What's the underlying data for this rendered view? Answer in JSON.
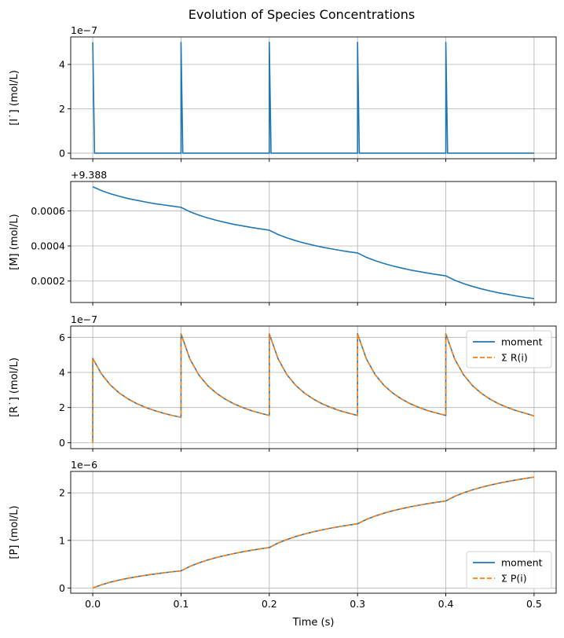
{
  "chart_data": {
    "type": "line",
    "title": "Evolution of Species Concentrations",
    "xlabel": "Time (s)",
    "xlim": [
      -0.025,
      0.525
    ],
    "xticks": [
      0.0,
      0.1,
      0.2,
      0.3,
      0.4,
      0.5
    ],
    "xtick_labels": [
      "0.0",
      "0.1",
      "0.2",
      "0.3",
      "0.4",
      "0.5"
    ],
    "grid": true,
    "colors": {
      "blue": "#1f77b4",
      "orange": "#ff7f0e"
    },
    "panels": [
      {
        "ylabel": "[I˙] (mol/L)",
        "offset_text": "1e−7",
        "scale": 1e-07,
        "ylim": [
          -0.25,
          5.24
        ],
        "yticks": [
          0,
          2,
          4
        ],
        "ytick_labels": [
          "0",
          "2",
          "4"
        ],
        "series": [
          {
            "name": "I",
            "style": "solid",
            "color": "#1f77b4",
            "x": [
              0,
              0.002,
              0.1,
              0.1,
              0.102,
              0.2,
              0.2,
              0.202,
              0.3,
              0.3,
              0.302,
              0.4,
              0.4,
              0.402,
              0.5
            ],
            "y": [
              5,
              0,
              0,
              5,
              0,
              0,
              5,
              0,
              0,
              5,
              0,
              0,
              5,
              0,
              0
            ]
          }
        ]
      },
      {
        "ylabel": "[M] (mol/L)",
        "offset_text": "+9.388",
        "offset": 9.388,
        "ylim": [
          7.8e-05,
          0.000767
        ],
        "yticks": [
          0.0002,
          0.0004,
          0.0006
        ],
        "ytick_labels": [
          "0.0002",
          "0.0004",
          "0.0006"
        ],
        "series": [
          {
            "name": "M",
            "style": "solid",
            "color": "#1f77b4",
            "x": [
              0,
              0.01,
              0.02,
              0.03,
              0.04,
              0.05,
              0.06,
              0.07,
              0.08,
              0.09,
              0.1,
              0.11,
              0.12,
              0.13,
              0.14,
              0.15,
              0.16,
              0.17,
              0.18,
              0.19,
              0.2,
              0.21,
              0.22,
              0.23,
              0.24,
              0.25,
              0.26,
              0.27,
              0.28,
              0.29,
              0.3,
              0.31,
              0.32,
              0.33,
              0.34,
              0.35,
              0.36,
              0.37,
              0.38,
              0.39,
              0.4,
              0.41,
              0.42,
              0.43,
              0.44,
              0.45,
              0.46,
              0.47,
              0.48,
              0.49,
              0.5
            ],
            "y": [
              0.000737,
              0.000715,
              0.000697,
              0.000683,
              0.00067,
              0.00066,
              0.00065,
              0.000641,
              0.000634,
              0.000627,
              0.00062,
              0.000595,
              0.000576,
              0.00056,
              0.000546,
              0.000534,
              0.000523,
              0.000514,
              0.000505,
              0.000497,
              0.00049,
              0.000465,
              0.000446,
              0.00043,
              0.000416,
              0.000404,
              0.000393,
              0.000384,
              0.000375,
              0.000367,
              0.00036,
              0.000335,
              0.000316,
              0.0003,
              0.000286,
              0.000274,
              0.000263,
              0.000254,
              0.000245,
              0.000237,
              0.00023,
              0.000205,
              0.000186,
              0.00017,
              0.000156,
              0.000144,
              0.000133,
              0.000124,
              0.000115,
              0.000107,
              0.0001
            ]
          }
        ]
      },
      {
        "ylabel": "[R˙] (mol/L)",
        "offset_text": "1e−7",
        "scale": 1e-07,
        "ylim": [
          -0.34,
          6.64
        ],
        "yticks": [
          0,
          2,
          4,
          6
        ],
        "ytick_labels": [
          "0",
          "2",
          "4",
          "6"
        ],
        "legend": {
          "position": "upper right"
        },
        "series": [
          {
            "name": "moment",
            "style": "solid",
            "color": "#1f77b4",
            "ref": "R"
          },
          {
            "name": "Σ R(i)",
            "style": "dashed",
            "color": "#ff7f0e",
            "ref": "R"
          }
        ],
        "R": {
          "x": [
            0,
            0,
            0.01,
            0.02,
            0.03,
            0.04,
            0.05,
            0.06,
            0.07,
            0.08,
            0.09,
            0.1,
            0.1,
            0.11,
            0.12,
            0.13,
            0.14,
            0.15,
            0.16,
            0.17,
            0.18,
            0.19,
            0.2,
            0.2,
            0.21,
            0.22,
            0.23,
            0.24,
            0.25,
            0.26,
            0.27,
            0.28,
            0.29,
            0.3,
            0.3,
            0.31,
            0.32,
            0.33,
            0.34,
            0.35,
            0.36,
            0.37,
            0.38,
            0.39,
            0.4,
            0.4,
            0.41,
            0.42,
            0.43,
            0.44,
            0.45,
            0.46,
            0.47,
            0.48,
            0.49,
            0.5
          ],
          "y": [
            0,
            4.8,
            3.9,
            3.28,
            2.83,
            2.49,
            2.22,
            2.005,
            1.83,
            1.68,
            1.55,
            1.445,
            6.2,
            4.77,
            3.87,
            3.26,
            2.82,
            2.48,
            2.21,
            2.0,
            1.82,
            1.68,
            1.55,
            6.2,
            4.77,
            3.87,
            3.26,
            2.82,
            2.48,
            2.21,
            2.0,
            1.82,
            1.68,
            1.55,
            6.2,
            4.77,
            3.87,
            3.26,
            2.82,
            2.48,
            2.21,
            2.0,
            1.82,
            1.68,
            1.55,
            6.2,
            4.77,
            3.87,
            3.26,
            2.82,
            2.48,
            2.21,
            2.0,
            1.82,
            1.68,
            1.52
          ]
        }
      },
      {
        "ylabel": "[P] (mol/L)",
        "offset_text": "1e−6",
        "scale": 1e-06,
        "ylim": [
          -0.11,
          2.45
        ],
        "yticks": [
          0,
          1,
          2
        ],
        "ytick_labels": [
          "0",
          "1",
          "2"
        ],
        "legend": {
          "position": "lower right"
        },
        "series": [
          {
            "name": "moment",
            "style": "solid",
            "color": "#1f77b4",
            "ref": "P"
          },
          {
            "name": "Σ P(i)",
            "style": "dashed",
            "color": "#ff7f0e",
            "ref": "P"
          }
        ],
        "P": {
          "x": [
            0,
            0.01,
            0.02,
            0.03,
            0.04,
            0.05,
            0.06,
            0.07,
            0.08,
            0.09,
            0.1,
            0.11,
            0.12,
            0.13,
            0.14,
            0.15,
            0.16,
            0.17,
            0.18,
            0.19,
            0.2,
            0.21,
            0.22,
            0.23,
            0.24,
            0.25,
            0.26,
            0.27,
            0.28,
            0.29,
            0.3,
            0.31,
            0.32,
            0.33,
            0.34,
            0.35,
            0.36,
            0.37,
            0.38,
            0.39,
            0.4,
            0.41,
            0.42,
            0.43,
            0.44,
            0.45,
            0.46,
            0.47,
            0.48,
            0.49,
            0.5
          ],
          "y": [
            0,
            0.068,
            0.122,
            0.167,
            0.205,
            0.238,
            0.267,
            0.294,
            0.318,
            0.34,
            0.36,
            0.453,
            0.526,
            0.587,
            0.639,
            0.684,
            0.724,
            0.76,
            0.793,
            0.823,
            0.85,
            0.945,
            1.02,
            1.082,
            1.135,
            1.181,
            1.222,
            1.259,
            1.292,
            1.322,
            1.35,
            1.441,
            1.513,
            1.572,
            1.623,
            1.667,
            1.707,
            1.742,
            1.774,
            1.803,
            1.83,
            1.925,
            2.0,
            2.062,
            2.115,
            2.161,
            2.202,
            2.239,
            2.272,
            2.302,
            2.33
          ]
        }
      }
    ]
  }
}
